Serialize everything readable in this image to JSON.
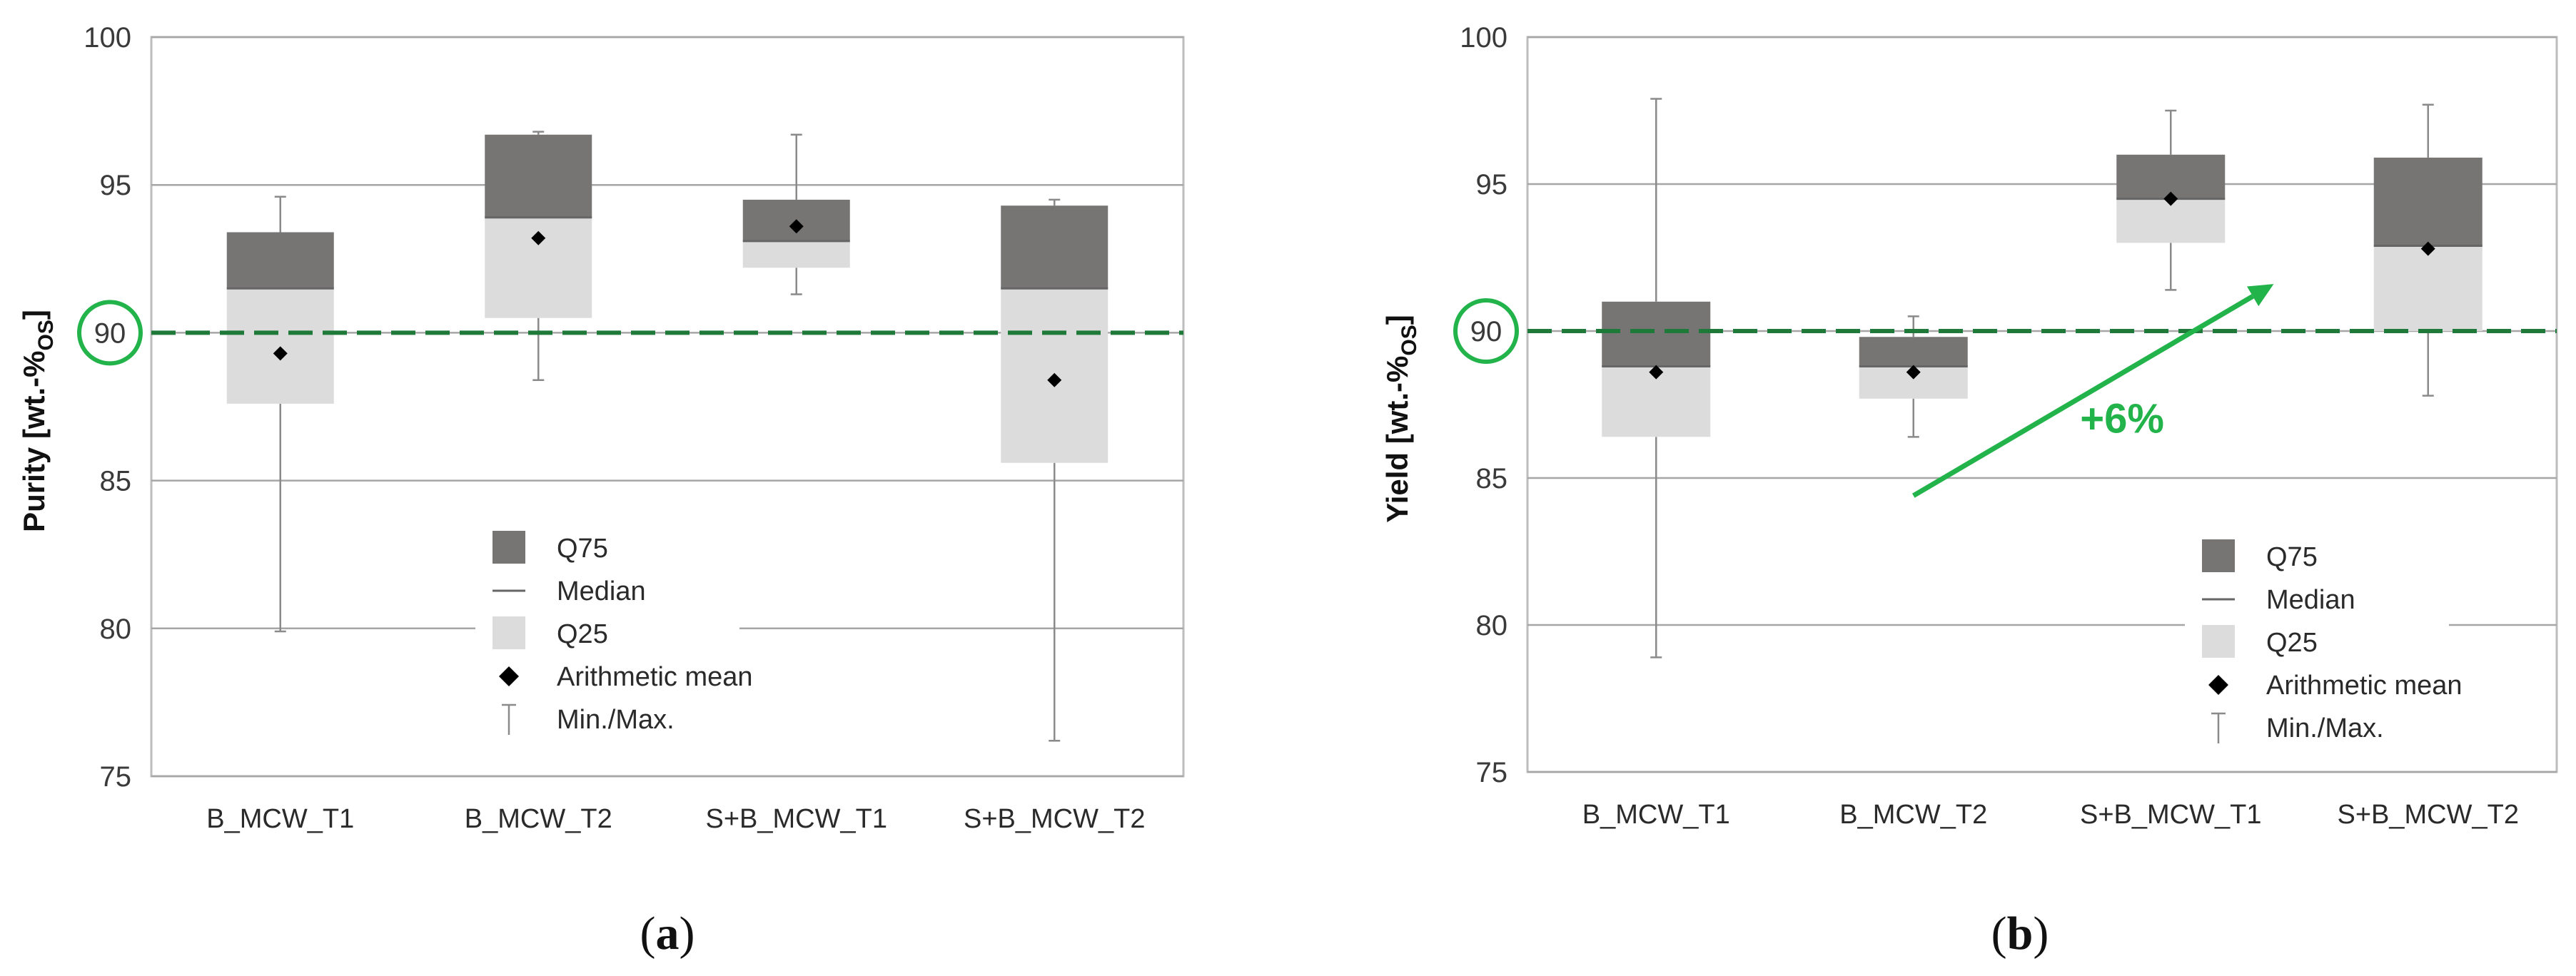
{
  "colors": {
    "q75": "#777474",
    "q25": "#dcdcdc",
    "whisker": "#8a8a8a",
    "median": "#666666",
    "mean": "#000000",
    "grid": "#a6a6a6",
    "frame": "#bdbdbd",
    "target_line": "#1f7a3a",
    "highlight": "#22b34a"
  },
  "legend": {
    "q75": "Q75",
    "median": "Median",
    "q25": "Q25",
    "mean": "Arithmetic mean",
    "minmax": "Min./Max."
  },
  "chart_data": [
    {
      "type": "box",
      "panel": {
        "open": "(",
        "letter": "a",
        "close": ")"
      },
      "ylabel": {
        "main": "Purity [wt.-%",
        "sub": "OS",
        "end": "]"
      },
      "ylim": [
        75,
        100
      ],
      "yticks": [
        "75",
        "80",
        "85",
        "90",
        "95",
        "100"
      ],
      "grid": "horizontal",
      "target_value": 90,
      "target_highlight_label": "90",
      "legend_position": "bottom-center",
      "categories": [
        "B_MCW_T1",
        "B_MCW_T2",
        "S+B_MCW_T1",
        "S+B_MCW_T2"
      ],
      "series": [
        {
          "category": "B_MCW_T1",
          "min": 79.9,
          "q25": 87.6,
          "median": 91.5,
          "q75": 93.4,
          "max": 94.6,
          "mean": 89.3
        },
        {
          "category": "B_MCW_T2",
          "min": 88.4,
          "q25": 90.5,
          "median": 93.9,
          "q75": 96.7,
          "max": 96.8,
          "mean": 93.2
        },
        {
          "category": "S+B_MCW_T1",
          "min": 91.3,
          "q25": 92.2,
          "median": 93.1,
          "q75": 94.5,
          "max": 96.7,
          "mean": 93.6
        },
        {
          "category": "S+B_MCW_T2",
          "min": 76.2,
          "q25": 85.6,
          "median": 91.5,
          "q75": 94.3,
          "max": 94.5,
          "mean": 88.4
        }
      ]
    },
    {
      "type": "box",
      "panel": {
        "open": "(",
        "letter": "b",
        "close": ")"
      },
      "ylabel": {
        "main": "Yield [wt.-%",
        "sub": "OS",
        "end": "]"
      },
      "ylim": [
        75,
        100
      ],
      "yticks": [
        "75",
        "80",
        "85",
        "90",
        "95",
        "100"
      ],
      "grid": "horizontal",
      "target_value": 90,
      "target_highlight_label": "90",
      "legend_position": "bottom-right",
      "annotation": {
        "text": "+6%",
        "from": {
          "x": 1.5,
          "y": 84.4
        },
        "to": {
          "x": 2.9,
          "y": 91.6
        }
      },
      "categories": [
        "B_MCW_T1",
        "B_MCW_T2",
        "S+B_MCW_T1",
        "S+B_MCW_T2"
      ],
      "series": [
        {
          "category": "B_MCW_T1",
          "min": 78.9,
          "q25": 86.4,
          "median": 88.8,
          "q75": 91.0,
          "max": 97.9,
          "mean": 88.6
        },
        {
          "category": "B_MCW_T2",
          "min": 86.4,
          "q25": 87.7,
          "median": 88.8,
          "q75": 89.8,
          "max": 90.5,
          "mean": 88.6
        },
        {
          "category": "S+B_MCW_T1",
          "min": 91.4,
          "q25": 93.0,
          "median": 94.5,
          "q75": 96.0,
          "max": 97.5,
          "mean": 94.5
        },
        {
          "category": "S+B_MCW_T2",
          "min": 87.8,
          "q25": 90.0,
          "median": 92.9,
          "q75": 95.9,
          "max": 97.7,
          "mean": 92.8
        }
      ]
    }
  ]
}
